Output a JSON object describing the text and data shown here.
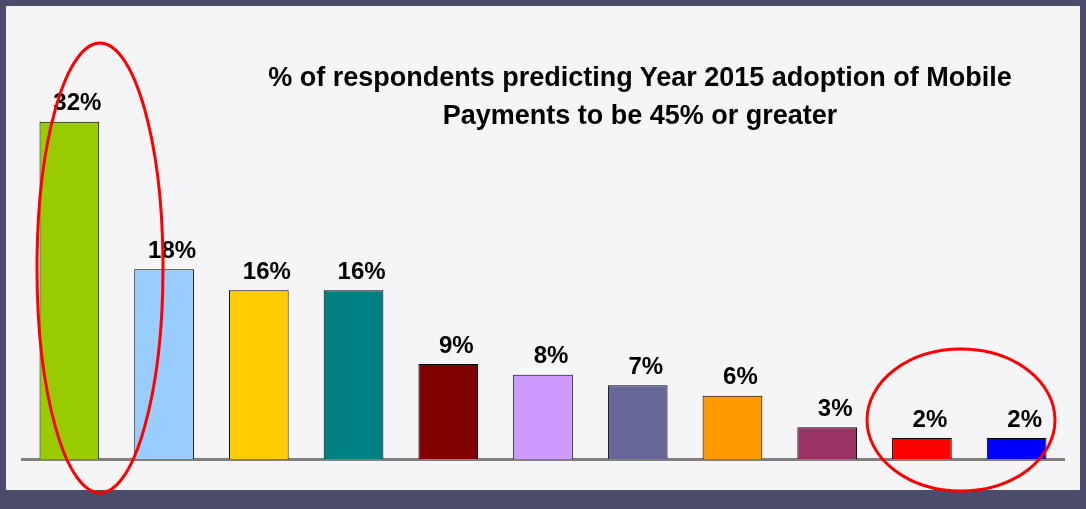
{
  "chart_data": {
    "type": "bar",
    "title": "% of respondents predicting Year 2015 adoption of Mobile Payments to be 45% or greater",
    "categories": [
      null,
      null,
      null,
      null,
      null,
      null,
      null,
      null,
      null,
      null,
      null
    ],
    "values": [
      32,
      18,
      16,
      16,
      9,
      8,
      7,
      6,
      3,
      2,
      2
    ],
    "value_labels": [
      "32%",
      "18%",
      "16%",
      "16%",
      "9%",
      "8%",
      "7%",
      "6%",
      "3%",
      "2%",
      "2%"
    ],
    "colors": [
      "#99cc00",
      "#99ccff",
      "#ffcc00",
      "#008080",
      "#800000",
      "#cc99ff",
      "#666699",
      "#ff9900",
      "#993366",
      "#ff0000",
      "#0000ff"
    ],
    "grid": false,
    "legend": false
  }
}
